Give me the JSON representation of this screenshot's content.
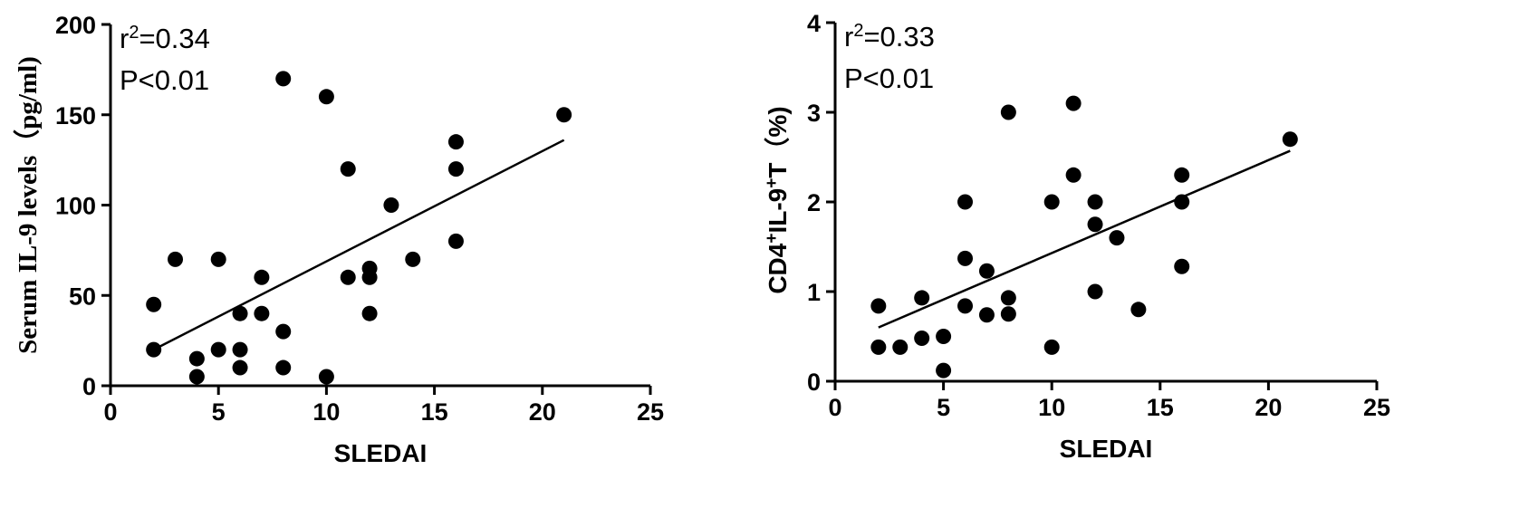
{
  "chart_data": [
    {
      "type": "scatter",
      "xlabel": "SLEDAI",
      "ylabel": "Serum IL-9 levels（pg/ml)",
      "xlim": [
        0,
        25
      ],
      "ylim": [
        0,
        200
      ],
      "xticks": [
        0,
        5,
        10,
        15,
        20,
        25
      ],
      "yticks": [
        0,
        50,
        100,
        150,
        200
      ],
      "annotations": {
        "r2_prefix": "r",
        "r2_sup": "2",
        "r2_value": "=0.34",
        "p_value": "P<0.01"
      },
      "points": [
        {
          "x": 2,
          "y": 45
        },
        {
          "x": 2,
          "y": 20
        },
        {
          "x": 3,
          "y": 70
        },
        {
          "x": 4,
          "y": 15
        },
        {
          "x": 4,
          "y": 5
        },
        {
          "x": 5,
          "y": 70
        },
        {
          "x": 5,
          "y": 20
        },
        {
          "x": 6,
          "y": 40
        },
        {
          "x": 6,
          "y": 20
        },
        {
          "x": 6,
          "y": 10
        },
        {
          "x": 7,
          "y": 60
        },
        {
          "x": 7,
          "y": 40
        },
        {
          "x": 8,
          "y": 170
        },
        {
          "x": 8,
          "y": 30
        },
        {
          "x": 8,
          "y": 10
        },
        {
          "x": 10,
          "y": 160
        },
        {
          "x": 10,
          "y": 5
        },
        {
          "x": 11,
          "y": 120
        },
        {
          "x": 11,
          "y": 60
        },
        {
          "x": 12,
          "y": 65
        },
        {
          "x": 12,
          "y": 60
        },
        {
          "x": 12,
          "y": 40
        },
        {
          "x": 13,
          "y": 100
        },
        {
          "x": 14,
          "y": 70
        },
        {
          "x": 16,
          "y": 135
        },
        {
          "x": 16,
          "y": 120
        },
        {
          "x": 16,
          "y": 80
        },
        {
          "x": 21,
          "y": 150
        }
      ],
      "fit_line": {
        "x": [
          2,
          21
        ],
        "y": [
          20,
          136
        ]
      }
    },
    {
      "type": "scatter",
      "xlabel": "SLEDAI",
      "ylabel_parts": [
        "CD4",
        "+",
        "IL-9",
        "+",
        "T（%)"
      ],
      "xlim": [
        0,
        25
      ],
      "ylim": [
        0,
        4
      ],
      "xticks": [
        0,
        5,
        10,
        15,
        20,
        25
      ],
      "yticks": [
        0,
        1,
        2,
        3,
        4
      ],
      "annotations": {
        "r2_prefix": "r",
        "r2_sup": "2",
        "r2_value": "=0.33",
        "p_value": "P<0.01"
      },
      "points": [
        {
          "x": 2,
          "y": 0.84
        },
        {
          "x": 2,
          "y": 0.38
        },
        {
          "x": 3,
          "y": 0.38
        },
        {
          "x": 4,
          "y": 0.93
        },
        {
          "x": 4,
          "y": 0.48
        },
        {
          "x": 5,
          "y": 0.5
        },
        {
          "x": 5,
          "y": 0.12
        },
        {
          "x": 6,
          "y": 2.0
        },
        {
          "x": 6,
          "y": 1.37
        },
        {
          "x": 6,
          "y": 0.84
        },
        {
          "x": 7,
          "y": 1.23
        },
        {
          "x": 7,
          "y": 0.74
        },
        {
          "x": 8,
          "y": 3.0
        },
        {
          "x": 8,
          "y": 0.93
        },
        {
          "x": 8,
          "y": 0.75
        },
        {
          "x": 10,
          "y": 2.0
        },
        {
          "x": 10,
          "y": 0.38
        },
        {
          "x": 11,
          "y": 3.1
        },
        {
          "x": 11,
          "y": 2.3
        },
        {
          "x": 12,
          "y": 2.0
        },
        {
          "x": 12,
          "y": 1.75
        },
        {
          "x": 12,
          "y": 1.0
        },
        {
          "x": 13,
          "y": 1.6
        },
        {
          "x": 14,
          "y": 0.8
        },
        {
          "x": 16,
          "y": 2.3
        },
        {
          "x": 16,
          "y": 2.0
        },
        {
          "x": 16,
          "y": 1.28
        },
        {
          "x": 21,
          "y": 2.7
        }
      ],
      "fit_line": {
        "x": [
          2,
          21
        ],
        "y": [
          0.6,
          2.57
        ]
      }
    }
  ]
}
